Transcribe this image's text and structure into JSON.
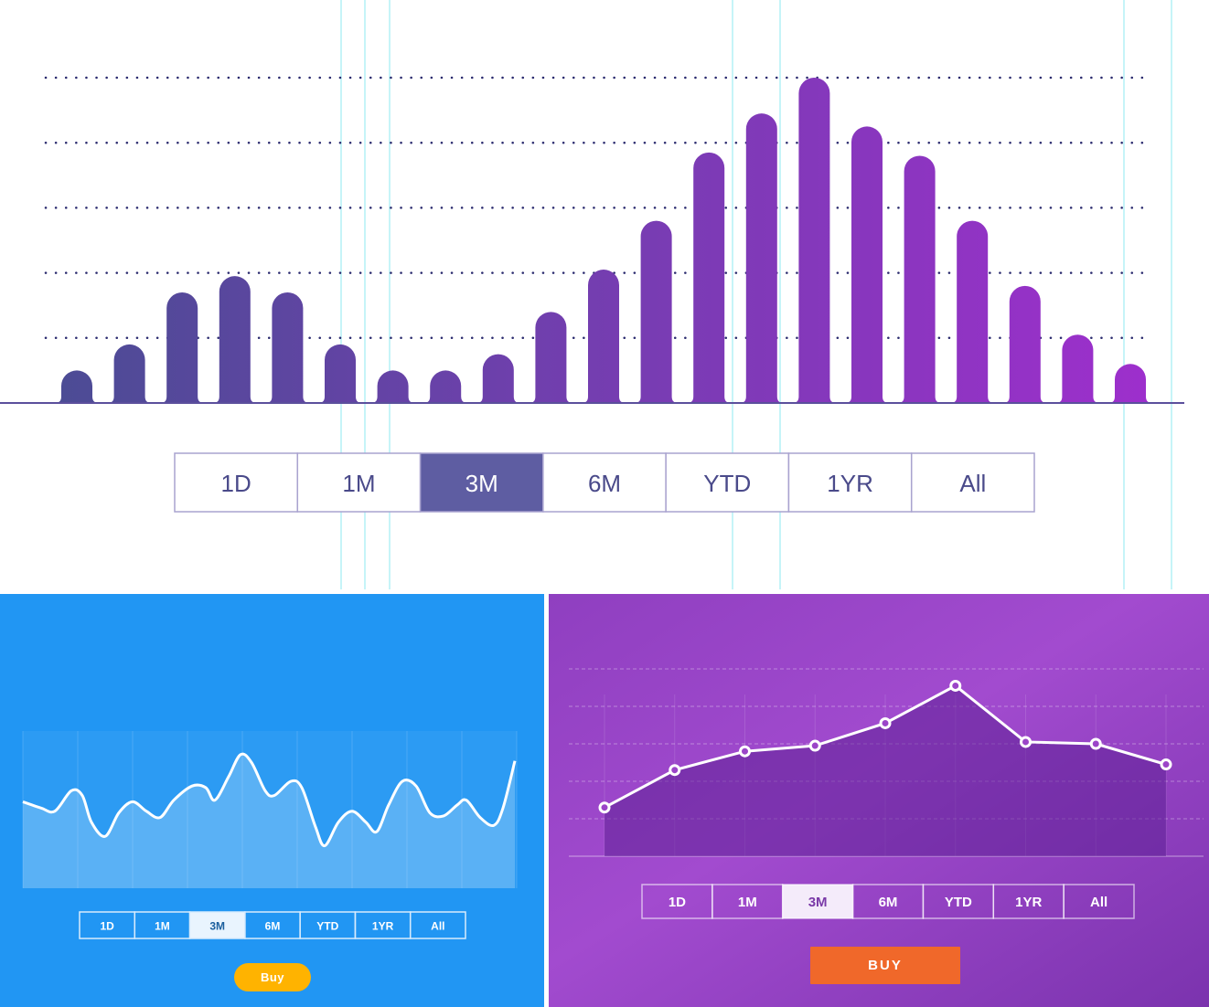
{
  "chart_data": [
    {
      "type": "bar",
      "categories": [
        null,
        null,
        null,
        null,
        null,
        null,
        null,
        null,
        null,
        null,
        null,
        null,
        null,
        null,
        null,
        null,
        null,
        null,
        null,
        null,
        null
      ],
      "values": [
        0.5,
        0.9,
        1.7,
        1.95,
        1.7,
        0.9,
        0.5,
        0.5,
        0.75,
        1.4,
        2.05,
        2.8,
        3.85,
        4.45,
        5.0,
        4.25,
        3.8,
        2.8,
        1.8,
        1.05,
        0.6
      ],
      "colors": [
        "#4b4c94",
        "#9d2fcc"
      ],
      "ylim": [
        0,
        5
      ],
      "yticks": [
        1,
        2,
        3,
        4,
        5
      ],
      "grid": true,
      "buttons": [
        "1D",
        "1M",
        "3M",
        "6M",
        "YTD",
        "1YR",
        "All"
      ],
      "selected": 2
    },
    {
      "type": "area",
      "smooth": true,
      "x": [
        0,
        20,
        35,
        53,
        65,
        75,
        90,
        105,
        120,
        135,
        150,
        165,
        185,
        200,
        210,
        225,
        238,
        250,
        265,
        275,
        293,
        305,
        320,
        330,
        345,
        360,
        375,
        387,
        400,
        415,
        430,
        445,
        460,
        475,
        485,
        500,
        515,
        525,
        538
      ],
      "values": [
        55,
        51,
        49,
        62,
        59,
        42,
        33,
        48,
        55,
        49,
        45,
        56,
        65,
        64,
        56,
        71,
        85,
        80,
        62,
        59,
        68,
        64,
        39,
        27,
        42,
        49,
        42,
        36,
        53,
        68,
        65,
        48,
        46,
        53,
        56,
        45,
        40,
        51,
        81
      ],
      "color": "#ffffff",
      "xlim": [
        0,
        540
      ],
      "xticks": [
        0,
        60,
        120,
        180,
        240,
        300,
        360,
        420,
        480,
        540
      ],
      "ylim": [
        0,
        100
      ],
      "grid": true,
      "buttons": [
        "1D",
        "1M",
        "3M",
        "6M",
        "YTD",
        "1YR",
        "All"
      ],
      "selected": 2,
      "action": "Buy"
    },
    {
      "type": "line",
      "categories": [
        null,
        null,
        null,
        null,
        null,
        null,
        null,
        null,
        null
      ],
      "values": [
        1.3,
        2.3,
        2.8,
        2.95,
        3.55,
        4.55,
        3.05,
        3.0,
        2.45
      ],
      "color": "#ffffff",
      "ylim": [
        0,
        5
      ],
      "yticks": [
        1,
        2,
        3,
        4,
        5
      ],
      "grid": true,
      "buttons": [
        "1D",
        "1M",
        "3M",
        "6M",
        "YTD",
        "1YR",
        "All"
      ],
      "selected": 2,
      "action": "BUY"
    }
  ]
}
